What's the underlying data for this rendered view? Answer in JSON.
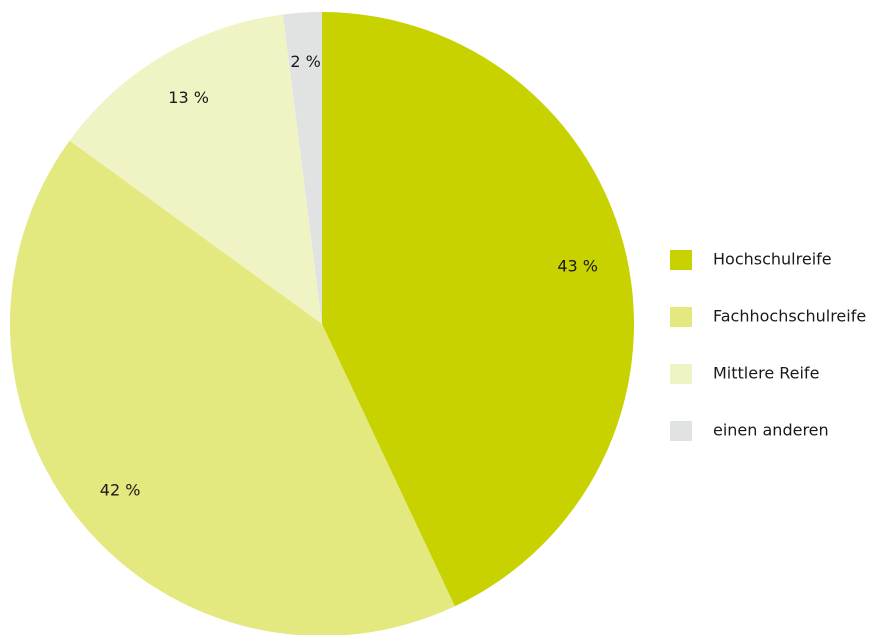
{
  "chart_data": {
    "type": "pie",
    "categories": [
      "Hochschulreife",
      "Fachhochschulreife",
      "Mittlere Reife",
      "einen anderen"
    ],
    "values": [
      43,
      42,
      13,
      2
    ],
    "value_labels": [
      "43 %",
      "42 %",
      "13 %",
      "2 %"
    ],
    "colors": [
      "#c8d200",
      "#e3e87f",
      "#f0f3c3",
      "#e1e3e3"
    ],
    "legend": "right"
  }
}
